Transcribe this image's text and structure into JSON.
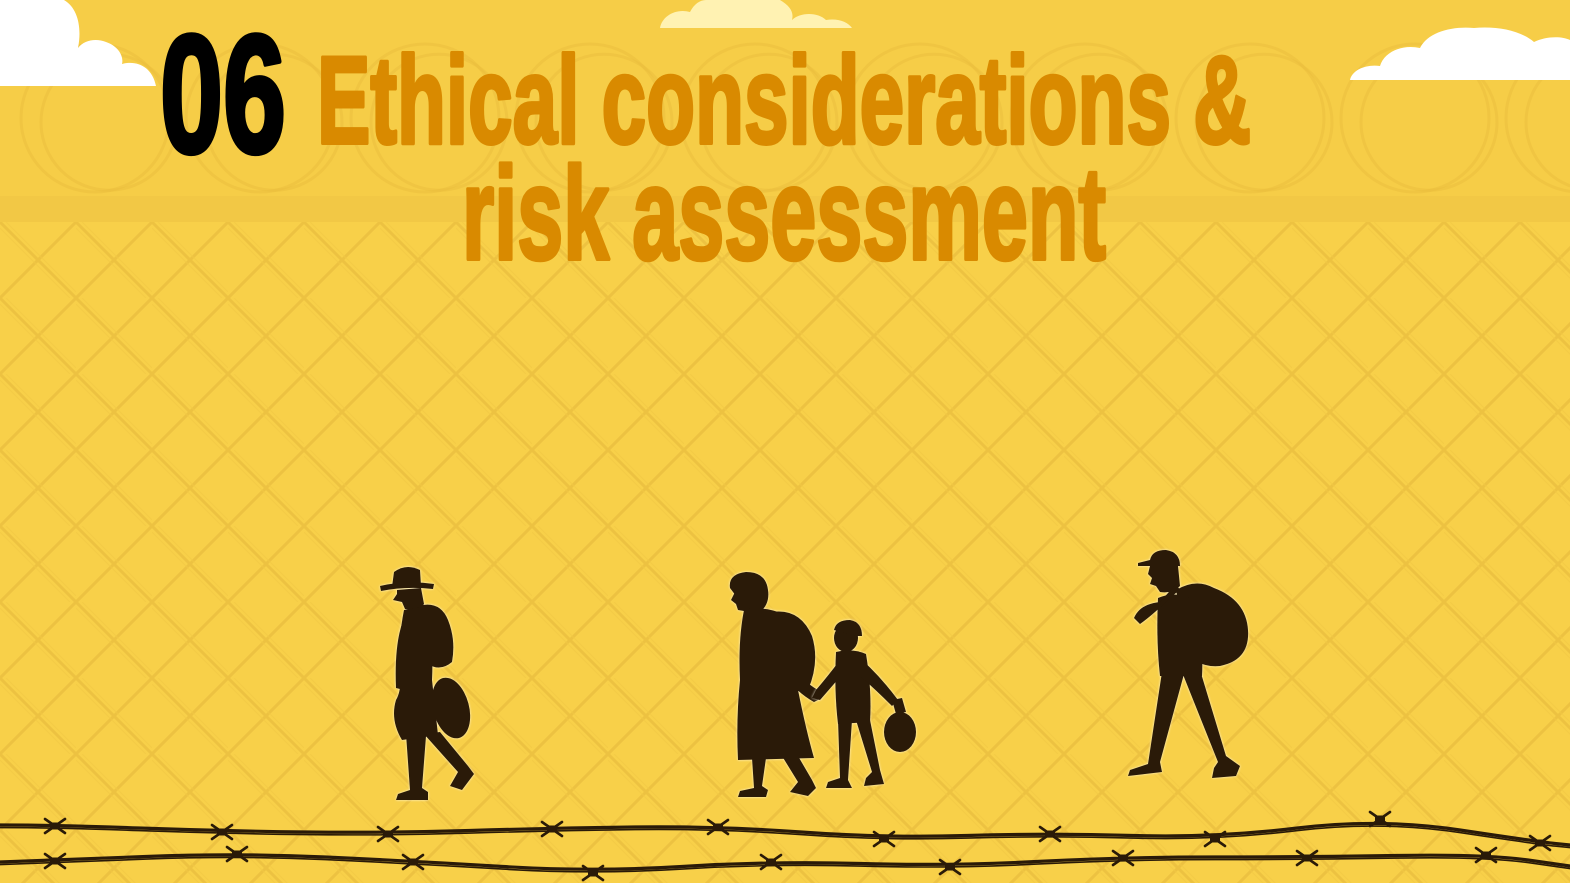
{
  "slide": {
    "section_number": "06",
    "title_lines": [
      "Ethical considerations &",
      "risk assessment"
    ]
  },
  "colors": {
    "background": "#F8D049",
    "title": "#D98A00",
    "section_number": "#000000",
    "silhouette": "#2A1A08",
    "cloud": "#FFFFFF"
  }
}
